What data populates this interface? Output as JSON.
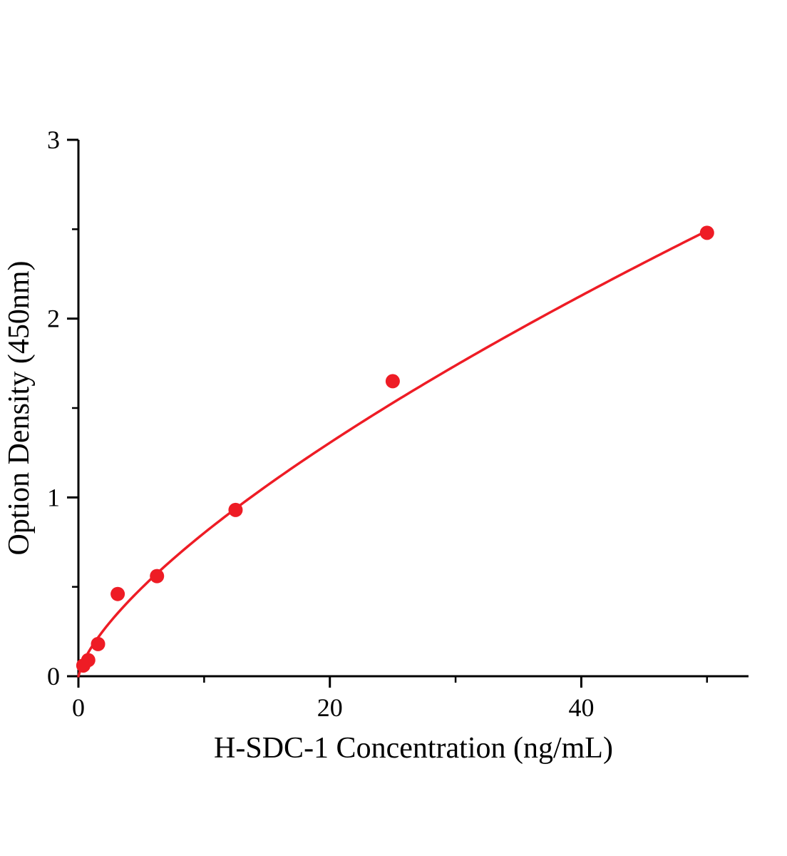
{
  "page": {
    "background": "#ffffff"
  },
  "chart_data": {
    "type": "scatter",
    "title": "",
    "xlabel": "H-SDC-1 Concentration (ng/mL)",
    "ylabel": "Option Density (450nm)",
    "x": [
      0.39,
      0.78,
      1.56,
      3.125,
      6.25,
      12.5,
      25,
      50
    ],
    "y": [
      0.06,
      0.09,
      0.18,
      0.46,
      0.56,
      0.93,
      1.65,
      2.48
    ],
    "fit_curve": {
      "type": "power",
      "a": 0.158,
      "b": 0.705,
      "x_start": 0,
      "x_end": 50
    },
    "xlim": [
      0,
      53.3
    ],
    "ylim": [
      0,
      3
    ],
    "xticks": [
      0,
      20,
      40
    ],
    "xminorticks": [
      10,
      30,
      50
    ],
    "yticks": [
      0,
      1,
      2,
      3
    ],
    "yminorticks": [
      0.5,
      1.5,
      2.5
    ],
    "grid": false,
    "legend": null,
    "point_color": "#ee1c25",
    "line_color": "#ee1c25",
    "axis_color": "#000000",
    "point_radius": 10,
    "line_width": 3.5
  }
}
